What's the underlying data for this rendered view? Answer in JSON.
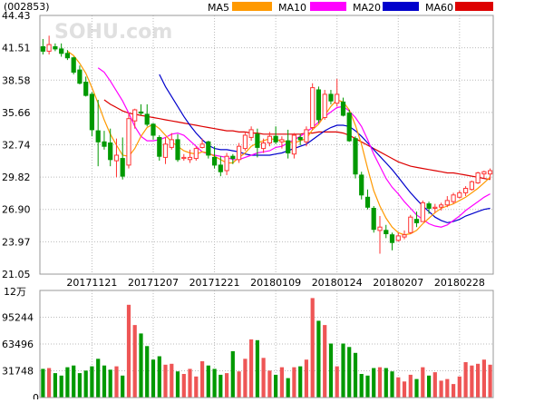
{
  "header": {
    "code": "(002853)",
    "watermark": "SOHU.com",
    "legend": [
      {
        "label": "MA5",
        "color": "#FF9900"
      },
      {
        "label": "MA10",
        "color": "#FF00FF"
      },
      {
        "label": "MA20",
        "color": "#0000CC"
      },
      {
        "label": "MA60",
        "color": "#DD0000"
      }
    ]
  },
  "colors": {
    "up": "#FF3333",
    "down": "#009900",
    "vol_up": "#EE5555",
    "vol_down": "#009900",
    "grid": "#BBBBBB",
    "frame": "#999999"
  },
  "chart_data": [
    {
      "type": "candlestick",
      "yticks": [
        "44.43",
        "41.51",
        "38.58",
        "35.66",
        "32.74",
        "29.82",
        "26.90",
        "23.97",
        "21.05"
      ],
      "ylim": [
        21.05,
        44.43
      ],
      "date_labels": [
        "20171121",
        "20171207",
        "20171221",
        "20180109",
        "20180124",
        "20180207",
        "20180228"
      ],
      "date_label_index": [
        8,
        18,
        28,
        38,
        48,
        58,
        68
      ],
      "ohlc": [
        [
          41.6,
          42.3,
          40.9,
          41.2
        ],
        [
          41.2,
          42.6,
          40.9,
          41.8
        ],
        [
          41.6,
          41.9,
          41.2,
          41.4
        ],
        [
          41.4,
          41.9,
          40.7,
          41.0
        ],
        [
          41.0,
          41.3,
          40.4,
          40.6
        ],
        [
          40.6,
          40.7,
          39.1,
          39.3
        ],
        [
          39.5,
          39.9,
          38.2,
          38.3
        ],
        [
          38.4,
          38.9,
          37.1,
          37.2
        ],
        [
          37.3,
          37.5,
          33.5,
          34.1
        ],
        [
          34.0,
          36.8,
          30.8,
          33.0
        ],
        [
          33.0,
          34.0,
          32.3,
          32.6
        ],
        [
          32.9,
          34.2,
          30.8,
          31.4
        ],
        [
          31.3,
          33.3,
          29.8,
          31.8
        ],
        [
          31.5,
          33.4,
          29.6,
          29.9
        ],
        [
          30.9,
          35.6,
          30.6,
          35.1
        ],
        [
          34.9,
          36.0,
          34.2,
          35.9
        ],
        [
          35.7,
          36.4,
          35.4,
          35.6
        ],
        [
          35.5,
          36.4,
          34.4,
          34.6
        ],
        [
          34.6,
          34.7,
          33.2,
          33.6
        ],
        [
          33.4,
          33.6,
          31.3,
          31.7
        ],
        [
          31.6,
          33.4,
          31.0,
          32.8
        ],
        [
          32.5,
          33.8,
          32.3,
          33.2
        ],
        [
          33.2,
          33.7,
          31.2,
          31.4
        ],
        [
          31.5,
          31.9,
          31.3,
          31.6
        ],
        [
          31.4,
          32.3,
          31.1,
          31.6
        ],
        [
          31.5,
          32.6,
          31.3,
          32.4
        ],
        [
          32.5,
          33.3,
          32.4,
          32.8
        ],
        [
          33.0,
          33.1,
          31.5,
          31.8
        ],
        [
          31.6,
          32.6,
          30.6,
          30.9
        ],
        [
          30.9,
          31.7,
          29.9,
          30.3
        ],
        [
          30.4,
          32.0,
          30.0,
          31.7
        ],
        [
          31.7,
          31.9,
          31.0,
          31.5
        ],
        [
          31.4,
          32.9,
          31.1,
          32.6
        ],
        [
          32.4,
          33.9,
          32.2,
          33.6
        ],
        [
          33.4,
          34.4,
          33.1,
          34.1
        ],
        [
          33.7,
          34.2,
          31.6,
          32.5
        ],
        [
          32.4,
          33.3,
          32.0,
          32.9
        ],
        [
          32.9,
          33.9,
          32.6,
          33.5
        ],
        [
          33.5,
          34.4,
          32.8,
          33.0
        ],
        [
          33.0,
          33.5,
          32.4,
          33.2
        ],
        [
          33.1,
          34.1,
          31.5,
          32.0
        ],
        [
          31.9,
          33.8,
          31.5,
          33.6
        ],
        [
          33.4,
          33.7,
          32.7,
          33.2
        ],
        [
          33.0,
          34.4,
          32.6,
          34.1
        ],
        [
          34.3,
          38.3,
          34.1,
          37.9
        ],
        [
          37.7,
          38.0,
          34.7,
          35.0
        ],
        [
          35.2,
          37.7,
          35.0,
          37.3
        ],
        [
          37.3,
          37.7,
          36.4,
          36.7
        ],
        [
          36.5,
          38.7,
          36.2,
          37.3
        ],
        [
          36.6,
          37.0,
          35.3,
          35.4
        ],
        [
          35.6,
          35.9,
          33.0,
          33.1
        ],
        [
          33.3,
          33.5,
          29.7,
          30.1
        ],
        [
          30.0,
          30.3,
          27.8,
          28.2
        ],
        [
          28.0,
          28.7,
          26.9,
          27.1
        ],
        [
          27.0,
          27.2,
          24.8,
          25.1
        ],
        [
          25.0,
          26.3,
          22.9,
          25.3
        ],
        [
          25.0,
          25.5,
          24.3,
          24.7
        ],
        [
          24.6,
          24.8,
          23.2,
          23.9
        ],
        [
          24.1,
          24.8,
          24.0,
          24.5
        ],
        [
          24.4,
          25.0,
          24.2,
          24.6
        ],
        [
          24.8,
          26.4,
          24.7,
          26.2
        ],
        [
          26.0,
          26.7,
          25.3,
          25.7
        ],
        [
          25.8,
          27.7,
          25.8,
          27.5
        ],
        [
          27.4,
          27.6,
          26.5,
          27.0
        ],
        [
          27.0,
          27.4,
          26.6,
          27.1
        ],
        [
          27.1,
          27.5,
          26.8,
          27.3
        ],
        [
          27.3,
          28.1,
          27.1,
          27.7
        ],
        [
          27.6,
          28.4,
          27.4,
          28.2
        ],
        [
          28.0,
          28.6,
          27.9,
          28.4
        ],
        [
          28.4,
          29.0,
          28.1,
          28.8
        ],
        [
          28.7,
          29.5,
          28.6,
          29.4
        ],
        [
          29.3,
          30.3,
          29.2,
          30.2
        ],
        [
          30.1,
          30.4,
          29.7,
          30.3
        ],
        [
          30.1,
          30.6,
          29.6,
          30.4
        ]
      ],
      "ma5": [
        null,
        null,
        null,
        null,
        41.2,
        40.8,
        40.1,
        39.2,
        37.9,
        36.5,
        35.0,
        33.7,
        32.7,
        31.8,
        31.7,
        32.4,
        33.5,
        34.3,
        34.6,
        34.2,
        33.6,
        33.0,
        32.6,
        32.2,
        32.0,
        31.9,
        32.1,
        32.0,
        31.7,
        31.4,
        31.1,
        31.1,
        31.6,
        32.0,
        32.6,
        32.9,
        33.1,
        33.3,
        33.2,
        33.1,
        33.0,
        32.9,
        33.1,
        33.3,
        34.1,
        34.6,
        35.4,
        36.2,
        36.8,
        36.6,
        35.9,
        34.5,
        32.8,
        30.6,
        28.6,
        27.2,
        26.1,
        25.3,
        24.8,
        24.6,
        24.7,
        25.0,
        25.6,
        26.1,
        26.6,
        27.0,
        27.2,
        27.4,
        27.7,
        28.0,
        28.4,
        28.8,
        29.3,
        29.8
      ],
      "ma10": [
        null,
        null,
        null,
        null,
        null,
        null,
        null,
        null,
        null,
        39.7,
        39.3,
        38.5,
        37.6,
        36.7,
        35.6,
        34.4,
        33.5,
        33.1,
        33.1,
        33.2,
        33.4,
        33.7,
        33.8,
        33.6,
        33.1,
        32.6,
        32.1,
        31.9,
        31.8,
        31.7,
        31.6,
        31.4,
        31.4,
        31.6,
        31.8,
        32.0,
        32.1,
        32.2,
        32.5,
        32.6,
        32.9,
        33.2,
        33.5,
        33.9,
        34.3,
        34.8,
        35.3,
        35.7,
        36.1,
        36.2,
        35.8,
        35.2,
        34.4,
        33.2,
        31.9,
        30.8,
        29.7,
        28.9,
        28.3,
        27.6,
        27.0,
        26.4,
        26.0,
        25.6,
        25.4,
        25.3,
        25.5,
        25.9,
        26.3,
        26.8,
        27.2,
        27.6,
        28.0,
        28.3
      ],
      "ma20": [
        null,
        null,
        null,
        null,
        null,
        null,
        null,
        null,
        null,
        null,
        null,
        null,
        null,
        null,
        null,
        null,
        null,
        null,
        null,
        39.1,
        38.0,
        37.1,
        36.2,
        35.3,
        34.5,
        33.8,
        33.2,
        32.7,
        32.4,
        32.3,
        32.3,
        32.2,
        32.1,
        31.9,
        31.8,
        31.8,
        31.8,
        31.8,
        31.9,
        32.0,
        32.2,
        32.4,
        32.6,
        32.8,
        33.2,
        33.6,
        34.0,
        34.3,
        34.5,
        34.5,
        34.4,
        34.0,
        33.5,
        32.9,
        32.3,
        31.7,
        31.1,
        30.5,
        29.8,
        29.1,
        28.4,
        27.8,
        27.2,
        26.7,
        26.2,
        25.9,
        25.7,
        25.8,
        26.0,
        26.3,
        26.5,
        26.7,
        26.9,
        27.0
      ],
      "ma60": [
        null,
        null,
        null,
        null,
        null,
        null,
        null,
        null,
        null,
        null,
        36.8,
        36.4,
        36.1,
        35.8,
        35.6,
        35.5,
        35.4,
        35.3,
        35.2,
        35.1,
        35.0,
        34.9,
        34.8,
        34.7,
        34.6,
        34.5,
        34.4,
        34.3,
        34.2,
        34.1,
        34.0,
        34.0,
        33.9,
        33.9,
        33.8,
        33.8,
        33.7,
        33.7,
        33.7,
        33.7,
        33.7,
        33.7,
        33.7,
        33.8,
        33.8,
        33.9,
        33.9,
        33.9,
        33.9,
        33.8,
        33.6,
        33.3,
        33.0,
        32.7,
        32.4,
        32.1,
        31.8,
        31.5,
        31.2,
        31.0,
        30.8,
        30.7,
        30.6,
        30.5,
        30.4,
        30.3,
        30.2,
        30.2,
        30.1,
        30.0,
        29.9,
        29.8,
        29.7,
        29.6
      ]
    },
    {
      "type": "bar",
      "unit": "12万",
      "yticks": [
        "95244",
        "63496",
        "31748",
        "0"
      ],
      "ylim": [
        0,
        127000
      ],
      "values": [
        34000,
        35000,
        29000,
        26000,
        36000,
        38000,
        29000,
        32000,
        37000,
        46000,
        38000,
        33000,
        37000,
        26000,
        110000,
        86000,
        76000,
        61000,
        45000,
        49000,
        39000,
        40000,
        31000,
        28000,
        34000,
        25000,
        43000,
        38000,
        34000,
        27000,
        29000,
        55000,
        31000,
        46000,
        69000,
        68000,
        47000,
        32000,
        27000,
        36000,
        23000,
        36000,
        37000,
        45000,
        118000,
        91000,
        86000,
        64000,
        37000,
        64000,
        60000,
        53000,
        28000,
        26000,
        35000,
        36000,
        35000,
        31000,
        24000,
        19000,
        27000,
        22000,
        36000,
        26000,
        30000,
        20000,
        22000,
        16000,
        25000,
        42000,
        38000,
        40000,
        45000,
        39000
      ]
    }
  ]
}
